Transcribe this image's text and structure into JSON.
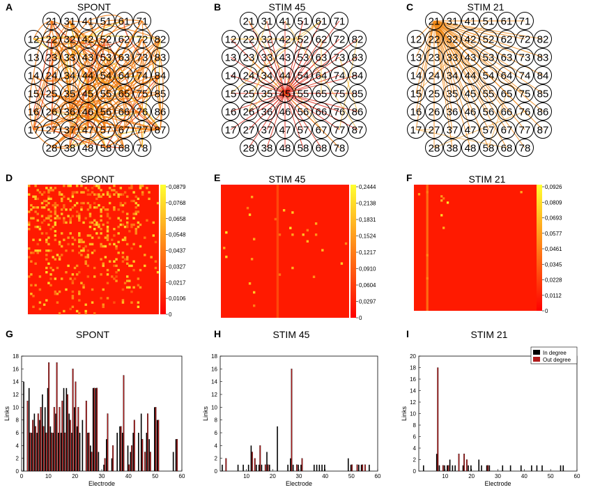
{
  "panels": {
    "A": {
      "letter": "A",
      "title": "SPONT"
    },
    "B": {
      "letter": "B",
      "title": "STIM 45"
    },
    "C": {
      "letter": "C",
      "title": "STIM 21"
    },
    "D": {
      "letter": "D",
      "title": "SPONT"
    },
    "E": {
      "letter": "E",
      "title": "STIM 45"
    },
    "F": {
      "letter": "F",
      "title": "STIM 21"
    },
    "G": {
      "letter": "G",
      "title": "SPONT"
    },
    "H": {
      "letter": "H",
      "title": "STIM 45"
    },
    "I": {
      "letter": "I",
      "title": "STIM 21"
    }
  },
  "colors": {
    "matrix_bg": "#ff1a00",
    "bar_in": "#000000",
    "bar_out": "#b01a1a",
    "link": "#f08a1a",
    "cb_low": "#ff0000",
    "cb_high": "#ffff30"
  },
  "mea_electrodes": [
    "21",
    "31",
    "41",
    "51",
    "61",
    "71",
    "12",
    "22",
    "32",
    "42",
    "52",
    "62",
    "72",
    "82",
    "13",
    "23",
    "33",
    "43",
    "53",
    "63",
    "73",
    "83",
    "14",
    "24",
    "34",
    "44",
    "54",
    "64",
    "74",
    "84",
    "15",
    "25",
    "35",
    "45",
    "55",
    "65",
    "75",
    "85",
    "16",
    "26",
    "36",
    "46",
    "56",
    "66",
    "76",
    "86",
    "17",
    "27",
    "37",
    "47",
    "57",
    "67",
    "77",
    "87",
    "28",
    "38",
    "48",
    "58",
    "68",
    "78"
  ],
  "chart_data": [
    {
      "type": "network",
      "panel": "A",
      "title": "SPONT",
      "description": "Dense link graph among MEA electrodes"
    },
    {
      "type": "network",
      "panel": "B",
      "title": "STIM 45",
      "hub": "45"
    },
    {
      "type": "network",
      "panel": "C",
      "title": "STIM 21",
      "hub": "21"
    },
    {
      "type": "heatmap",
      "panel": "D",
      "title": "SPONT",
      "colorbar_ticks": [
        "0,0879",
        "0,0768",
        "0,0658",
        "0,0548",
        "0,0437",
        "0,0327",
        "0,0217",
        "0,0106",
        "0"
      ]
    },
    {
      "type": "heatmap",
      "panel": "E",
      "title": "STIM 45",
      "colorbar_ticks": [
        "0,2444",
        "0,2138",
        "0,1831",
        "0,1524",
        "0,1217",
        "0,0910",
        "0,0604",
        "0,0297",
        "0"
      ]
    },
    {
      "type": "heatmap",
      "panel": "F",
      "title": "STIM 21",
      "colorbar_ticks": [
        "0,0926",
        "0,0809",
        "0,0693",
        "0,0577",
        "0,0461",
        "0,0345",
        "0,0228",
        "0,0112",
        "0"
      ]
    },
    {
      "type": "bar",
      "panel": "G",
      "title": "SPONT",
      "xlabel": "Electrode",
      "ylabel": "Links",
      "xlim": [
        0,
        60
      ],
      "ylim": [
        0,
        18
      ],
      "xticks": [
        0,
        10,
        20,
        30,
        40,
        50,
        60
      ],
      "yticks": [
        0,
        2,
        4,
        6,
        8,
        10,
        12,
        14,
        16,
        18
      ],
      "series": [
        {
          "name": "In degree",
          "points": [
            [
              1,
              14
            ],
            [
              3,
              13
            ],
            [
              4,
              6
            ],
            [
              5,
              9
            ],
            [
              6,
              6
            ],
            [
              7,
              8
            ],
            [
              8,
              12
            ],
            [
              9,
              10
            ],
            [
              10,
              13
            ],
            [
              11,
              7
            ],
            [
              12,
              6
            ],
            [
              13,
              9
            ],
            [
              14,
              6
            ],
            [
              15,
              6
            ],
            [
              16,
              13
            ],
            [
              17,
              13
            ],
            [
              18,
              9
            ],
            [
              19,
              6
            ],
            [
              20,
              10
            ],
            [
              21,
              7
            ],
            [
              22,
              6
            ],
            [
              23,
              8
            ],
            [
              25,
              6
            ],
            [
              26,
              4
            ],
            [
              27,
              13
            ],
            [
              28,
              13
            ],
            [
              29,
              3
            ],
            [
              31,
              1
            ],
            [
              32,
              5
            ],
            [
              34,
              2
            ],
            [
              36,
              6
            ],
            [
              37,
              7
            ],
            [
              38,
              6
            ],
            [
              40,
              4
            ],
            [
              41,
              3
            ],
            [
              42,
              6
            ],
            [
              44,
              6
            ],
            [
              45,
              9
            ],
            [
              47,
              6
            ],
            [
              48,
              5
            ],
            [
              50,
              10
            ],
            [
              51,
              8
            ],
            [
              57,
              3
            ],
            [
              58,
              5
            ]
          ]
        },
        {
          "name": "Out degree",
          "points": [
            [
              2,
              11
            ],
            [
              3,
              6
            ],
            [
              4,
              8
            ],
            [
              5,
              7
            ],
            [
              6,
              9
            ],
            [
              7,
              10
            ],
            [
              8,
              7
            ],
            [
              9,
              6
            ],
            [
              10,
              17
            ],
            [
              11,
              6
            ],
            [
              12,
              10
            ],
            [
              13,
              17
            ],
            [
              14,
              10
            ],
            [
              15,
              11
            ],
            [
              16,
              6
            ],
            [
              17,
              12
            ],
            [
              18,
              8
            ],
            [
              19,
              16
            ],
            [
              20,
              14
            ],
            [
              21,
              10
            ],
            [
              24,
              11
            ],
            [
              25,
              6
            ],
            [
              26,
              3
            ],
            [
              27,
              13
            ],
            [
              28,
              13
            ],
            [
              31,
              2
            ],
            [
              32,
              9
            ],
            [
              34,
              4
            ],
            [
              37,
              7
            ],
            [
              38,
              15
            ],
            [
              40,
              1
            ],
            [
              41,
              4
            ],
            [
              42,
              8
            ],
            [
              45,
              5
            ],
            [
              46,
              3
            ],
            [
              47,
              9
            ],
            [
              48,
              3
            ],
            [
              50,
              10
            ],
            [
              51,
              8
            ],
            [
              58,
              5
            ]
          ]
        }
      ]
    },
    {
      "type": "bar",
      "panel": "H",
      "title": "STIM 45",
      "xlabel": "Electrode",
      "ylabel": "Links",
      "xlim": [
        0,
        60
      ],
      "ylim": [
        0,
        18
      ],
      "xticks": [
        10,
        20,
        30,
        40,
        50,
        60
      ],
      "yticks": [
        0,
        2,
        4,
        6,
        8,
        10,
        12,
        14,
        16,
        18
      ],
      "series": [
        {
          "name": "In degree",
          "points": [
            [
              1,
              1
            ],
            [
              7,
              1
            ],
            [
              9,
              1
            ],
            [
              11,
              1
            ],
            [
              12,
              4
            ],
            [
              14,
              1
            ],
            [
              15,
              1
            ],
            [
              16,
              1
            ],
            [
              18,
              3
            ],
            [
              19,
              1
            ],
            [
              22,
              7
            ],
            [
              26,
              1
            ],
            [
              27,
              2
            ],
            [
              28,
              1
            ],
            [
              30,
              1
            ],
            [
              31,
              1
            ],
            [
              36,
              1
            ],
            [
              37,
              1
            ],
            [
              38,
              1
            ],
            [
              39,
              1
            ],
            [
              40,
              1
            ],
            [
              49,
              2
            ],
            [
              50,
              1
            ],
            [
              53,
              1
            ],
            [
              54,
              1
            ],
            [
              57,
              1
            ]
          ]
        },
        {
          "name": "Out degree",
          "points": [
            [
              2,
              2
            ],
            [
              12,
              3
            ],
            [
              13,
              2
            ],
            [
              15,
              4
            ],
            [
              17,
              1
            ],
            [
              18,
              1
            ],
            [
              27,
              16
            ],
            [
              29,
              1
            ],
            [
              31,
              2
            ],
            [
              50,
              1
            ],
            [
              52,
              1
            ],
            [
              54,
              1
            ],
            [
              55,
              1
            ]
          ]
        }
      ]
    },
    {
      "type": "bar",
      "panel": "I",
      "title": "STIM 21",
      "xlabel": "Electrode",
      "ylabel": "Links",
      "xlim": [
        0,
        60
      ],
      "ylim": [
        0,
        20
      ],
      "xticks": [
        10,
        20,
        30,
        40,
        50,
        60
      ],
      "yticks": [
        0,
        2,
        4,
        6,
        8,
        10,
        12,
        14,
        16,
        18,
        20
      ],
      "series": [
        {
          "name": "In degree",
          "points": [
            [
              2,
              1
            ],
            [
              7,
              3
            ],
            [
              8,
              1
            ],
            [
              10,
              1
            ],
            [
              11,
              1
            ],
            [
              12,
              2
            ],
            [
              13,
              1
            ],
            [
              14,
              1
            ],
            [
              17,
              1
            ],
            [
              19,
              1
            ],
            [
              20,
              1
            ],
            [
              23,
              2
            ],
            [
              24,
              1
            ],
            [
              26,
              1
            ],
            [
              27,
              1
            ],
            [
              32,
              1
            ],
            [
              35,
              1
            ],
            [
              39,
              1
            ],
            [
              43,
              1
            ],
            [
              45,
              1
            ],
            [
              47,
              1
            ],
            [
              54,
              1
            ],
            [
              55,
              1
            ]
          ]
        },
        {
          "name": "Out degree",
          "points": [
            [
              7,
              18
            ],
            [
              9,
              1
            ],
            [
              11,
              1
            ],
            [
              15,
              3
            ],
            [
              17,
              3
            ],
            [
              18,
              2
            ],
            [
              26,
              1
            ]
          ]
        }
      ],
      "legend": [
        "In degree",
        "Out degree"
      ]
    }
  ]
}
